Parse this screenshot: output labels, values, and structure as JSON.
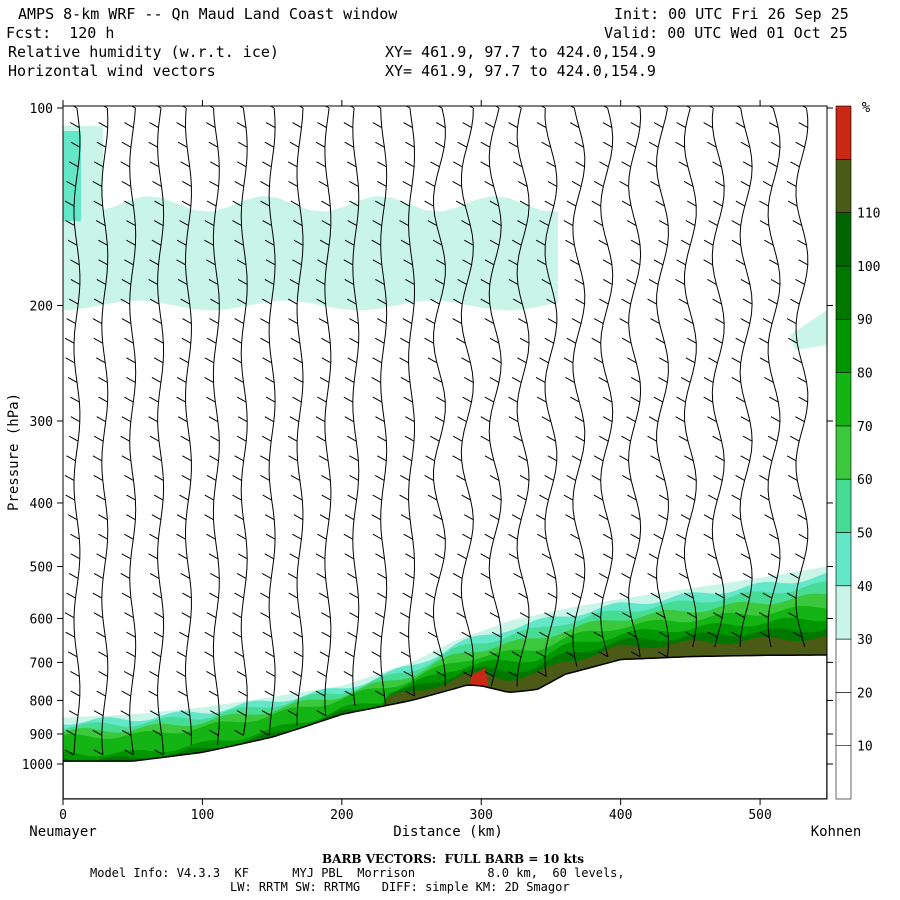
{
  "header": {
    "title": "AMPS 8-km WRF -- Qn Maud Land Coast window",
    "init": "Init: 00 UTC Fri 26 Sep 25",
    "fcst": "Fcst:  120 h",
    "valid": "Valid: 00 UTC Wed 01 Oct 25",
    "field1": "Relative humidity (w.r.t. ice)",
    "field2": "Horizontal wind vectors",
    "xy1": "XY= 461.9, 97.7 to 424.0,154.9",
    "xy2": "XY= 461.9, 97.7 to 424.0,154.9"
  },
  "footer": {
    "barb": "BARB VECTORS:  FULL BARB = 10 kts",
    "model_info": "Model Info: V4.3.3  KF      MYJ PBL  Morrison          8.0 km,  60 levels,",
    "physics": "LW: RRTM SW: RRTMG   DIFF: simple KM: 2D Smagor"
  },
  "chart_data": {
    "type": "heatmap",
    "title": "Relative humidity (w.r.t. ice) and horizontal wind vectors — vertical cross section",
    "xlabel": "Distance (km)",
    "ylabel": "Pressure (hPa)",
    "xlim": [
      0,
      548
    ],
    "ylim": [
      1050,
      100
    ],
    "y_scale": "log",
    "x_ticks": [
      0,
      100,
      200,
      300,
      400,
      500
    ],
    "x_tick_labels": [
      "0",
      "100",
      "200",
      "300",
      "400",
      "500"
    ],
    "y_ticks": [
      100,
      200,
      300,
      400,
      500,
      600,
      700,
      800,
      900,
      1000
    ],
    "y_tick_labels": [
      "100",
      "200",
      "300",
      "400",
      "500",
      "600",
      "700",
      "800",
      "900",
      "1000"
    ],
    "left_endpoint": "Neumayer",
    "right_endpoint": "Kohnen",
    "colorbar": {
      "unit": "%",
      "labels": [
        "10",
        "20",
        "30",
        "40",
        "50",
        "60",
        "70",
        "80",
        "90",
        "100",
        "110"
      ],
      "boundaries": [
        0,
        10,
        20,
        30,
        40,
        50,
        60,
        70,
        80,
        90,
        100,
        110,
        120
      ],
      "colors": [
        "#ffffff",
        "#ffffff",
        "#ffffff",
        "#c8f5e8",
        "#64e6c8",
        "#46dc96",
        "#3cc83c",
        "#14b414",
        "#009600",
        "#007800",
        "#006400",
        "#4b5a14",
        "#c82814"
      ]
    },
    "terrain_surface_hpa": [
      {
        "x": 0,
        "p": 990
      },
      {
        "x": 50,
        "p": 990
      },
      {
        "x": 100,
        "p": 960
      },
      {
        "x": 150,
        "p": 910
      },
      {
        "x": 200,
        "p": 840
      },
      {
        "x": 250,
        "p": 800
      },
      {
        "x": 290,
        "p": 758
      },
      {
        "x": 300,
        "p": 760
      },
      {
        "x": 320,
        "p": 778
      },
      {
        "x": 340,
        "p": 770
      },
      {
        "x": 360,
        "p": 730
      },
      {
        "x": 400,
        "p": 693
      },
      {
        "x": 450,
        "p": 686
      },
      {
        "x": 500,
        "p": 683
      },
      {
        "x": 548,
        "p": 682
      }
    ],
    "humid_layer_top_hpa": [
      {
        "x": 0,
        "p": 850
      },
      {
        "x": 50,
        "p": 840
      },
      {
        "x": 100,
        "p": 820
      },
      {
        "x": 150,
        "p": 790
      },
      {
        "x": 200,
        "p": 760
      },
      {
        "x": 250,
        "p": 700
      },
      {
        "x": 280,
        "p": 650
      },
      {
        "x": 320,
        "p": 605
      },
      {
        "x": 360,
        "p": 580
      },
      {
        "x": 400,
        "p": 560
      },
      {
        "x": 450,
        "p": 540
      },
      {
        "x": 500,
        "p": 520
      },
      {
        "x": 548,
        "p": 500
      }
    ],
    "upper_moist_band": {
      "x_range": [
        0,
        355
      ],
      "p_range": [
        140,
        200
      ],
      "rh_class": "30-40"
    },
    "saturated_core": {
      "x": 300,
      "p": 760,
      "rh_class": ">110"
    },
    "barb_columns_km": [
      10,
      30,
      50,
      70,
      90,
      110,
      130,
      150,
      170,
      190,
      210,
      230,
      250,
      270,
      290,
      310,
      330,
      350,
      370,
      390,
      410,
      430,
      450,
      470,
      490,
      510,
      530
    ]
  }
}
